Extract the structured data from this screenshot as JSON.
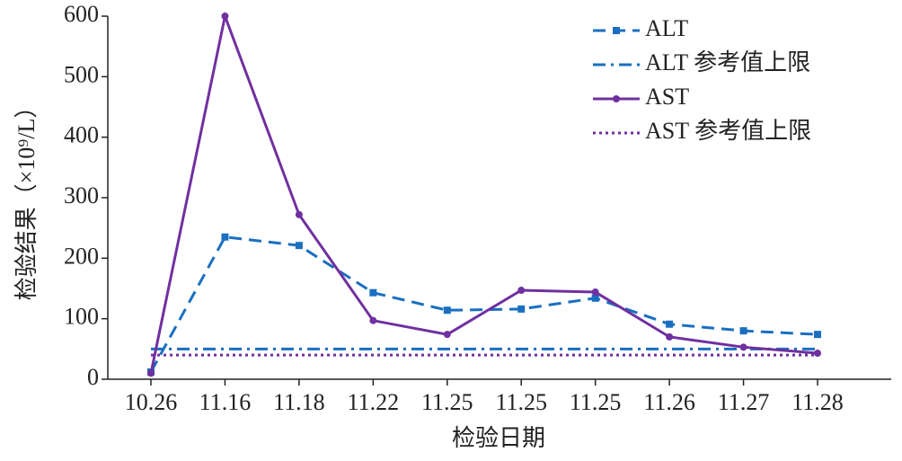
{
  "chart_data": {
    "type": "line",
    "x_label": "检验日期",
    "y_label": "检验结果（×10⁹/L）",
    "categories": [
      "10.26",
      "11.16",
      "11.18",
      "11.22",
      "11.25",
      "11.25",
      "11.25",
      "11.26",
      "11.27",
      "11.28"
    ],
    "series": [
      {
        "name": "ALT",
        "color": "#1a6fc0",
        "dash": "14,8",
        "marker": "square",
        "values": [
          12,
          235,
          221,
          143,
          114,
          116,
          134,
          91,
          80,
          74
        ]
      },
      {
        "name": "ALT 参考值上限",
        "color": "#1a6fc0",
        "dash": "14,6,3,6",
        "marker": "none",
        "values": [
          50,
          50,
          50,
          50,
          50,
          50,
          50,
          50,
          50,
          50
        ]
      },
      {
        "name": "AST",
        "color": "#7030a0",
        "dash": "none",
        "marker": "circle",
        "values": [
          10,
          600,
          272,
          97,
          74,
          147,
          144,
          70,
          53,
          43
        ]
      },
      {
        "name": "AST 参考值上限",
        "color": "#7030a0",
        "dash": "3,4",
        "marker": "none",
        "values": [
          40,
          40,
          40,
          40,
          40,
          40,
          40,
          40,
          40,
          40
        ]
      }
    ],
    "ylim": [
      0,
      600
    ],
    "yticks": [
      0,
      100,
      200,
      300,
      400,
      500,
      600
    ],
    "legend": "top-right",
    "grid": false
  }
}
